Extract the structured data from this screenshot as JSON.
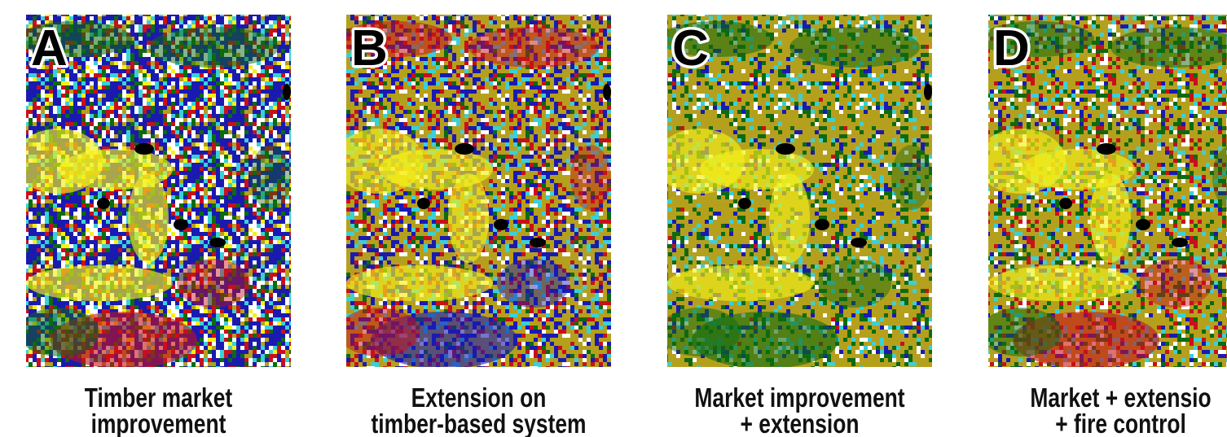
{
  "panels": [
    {
      "letter": "A",
      "caption": [
        "Timber market",
        "improvement"
      ]
    },
    {
      "letter": "B",
      "caption": [
        "Extension on",
        "timber-based system"
      ]
    },
    {
      "letter": "C",
      "caption": [
        "Market improvement",
        "+ extension"
      ]
    },
    {
      "letter": "D",
      "caption": [
        "Market + extensio",
        "+ fire control"
      ]
    }
  ]
}
